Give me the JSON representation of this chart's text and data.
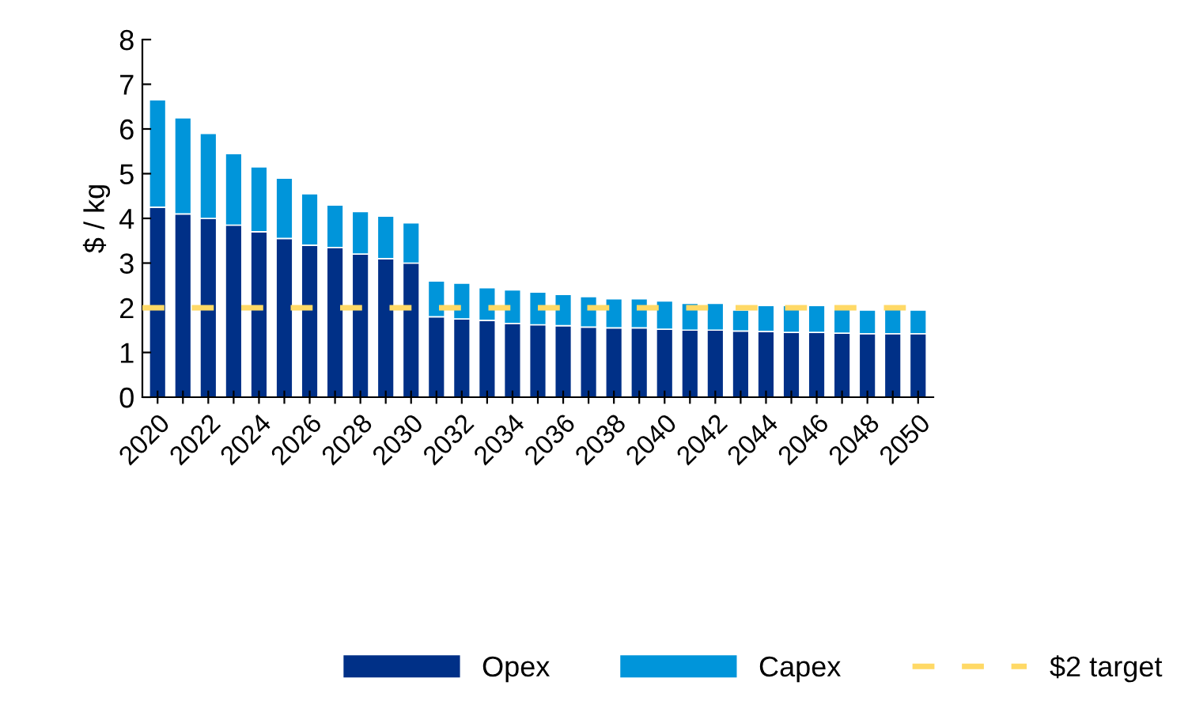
{
  "chart_data": {
    "type": "bar",
    "stacked": true,
    "ylabel": "$ / kg",
    "categories": [
      "2020",
      null,
      "2022",
      null,
      "2024",
      null,
      "2026",
      null,
      "2028",
      null,
      "2030",
      null,
      "2032",
      null,
      "2034",
      null,
      "2036",
      null,
      "2038",
      null,
      "2040",
      null,
      "2042",
      null,
      "2044",
      null,
      "2046",
      null,
      "2048",
      null,
      "2050"
    ],
    "series": [
      {
        "name": "Opex",
        "color": "#003087",
        "values": [
          4.25,
          4.1,
          4.0,
          3.85,
          3.7,
          3.55,
          3.4,
          3.35,
          3.2,
          3.1,
          3.0,
          1.8,
          1.75,
          1.72,
          1.65,
          1.62,
          1.6,
          1.57,
          1.55,
          1.55,
          1.52,
          1.5,
          1.5,
          1.48,
          1.47,
          1.45,
          1.45,
          1.43,
          1.42,
          1.42,
          1.42
        ]
      },
      {
        "name": "Capex",
        "color": "#0095da",
        "values": [
          2.4,
          2.15,
          1.9,
          1.6,
          1.45,
          1.35,
          1.15,
          0.95,
          0.95,
          0.95,
          0.9,
          0.8,
          0.8,
          0.73,
          0.75,
          0.73,
          0.7,
          0.68,
          0.65,
          0.65,
          0.63,
          0.6,
          0.6,
          0.47,
          0.58,
          0.6,
          0.6,
          0.57,
          0.53,
          0.58,
          0.53
        ]
      }
    ],
    "ref_lines": [
      {
        "axis": "y",
        "value": 2,
        "label": "$2 target",
        "color": "#ffd966",
        "line_style": "dashed"
      }
    ],
    "ylim": [
      0,
      8
    ],
    "yticks": [
      0,
      1,
      2,
      3,
      4,
      5,
      6,
      7,
      8
    ],
    "grid": false,
    "legend": "bottom right"
  }
}
